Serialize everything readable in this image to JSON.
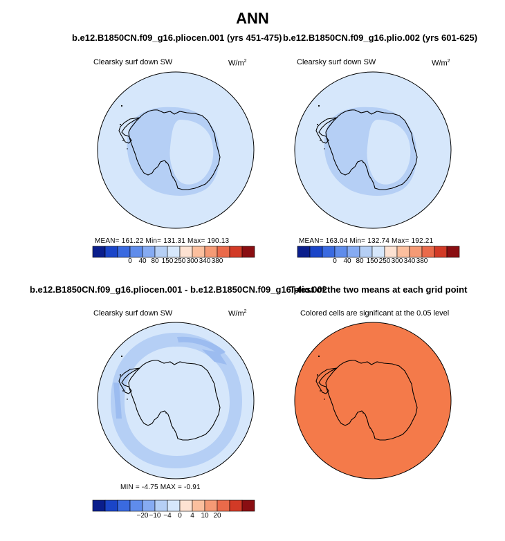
{
  "page": {
    "title": "ANN"
  },
  "panels": [
    {
      "run_title": "b.e12.B1850CN.f09_g16.pliocen.001 (yrs 451-475)",
      "variable": "Clearsky surf down SW",
      "units_base": "W/m",
      "units_exp": "2",
      "stats": "MEAN=  161.22   Min=  131.31   Max=  190.13"
    },
    {
      "run_title": "b.e12.B1850CN.f09_g16.plio.002 (yrs 601-625)",
      "variable": "Clearsky surf down SW",
      "units_base": "W/m",
      "units_exp": "2",
      "stats": "MEAN=  163.04   Min=  132.74   Max=  192.21"
    },
    {
      "run_title": "b.e12.B1850CN.f09_g16.pliocen.001 - b.e12.B1850CN.f09_g16.plio.002",
      "variable": "Clearsky surf down SW",
      "units_base": "W/m",
      "units_exp": "2",
      "stats": "MIN  =   -4.75  MAX  =   -0.91"
    },
    {
      "run_title": "T-test of the two means at each grid point",
      "variable": "Colored cells are significant at the 0.05 level"
    }
  ],
  "colors": {
    "ocean_light": "#d6e7fb",
    "mid_blue": "#b5cff5",
    "ttest_orange": "#f47a4a",
    "coast": "#000000"
  },
  "chart_data": [
    {
      "type": "heatmap",
      "title": "b.e12.B1850CN.f09_g16.pliocen.001 (yrs 451-475)",
      "variable": "Clearsky surf down SW",
      "units": "W/m^2",
      "projection": "south polar stereographic",
      "mean": 161.22,
      "min": 131.31,
      "max": 190.13,
      "colorbar": {
        "labels": [
          "0",
          "40",
          "80",
          "150",
          "250",
          "300",
          "340",
          "380"
        ],
        "colors": [
          "#0a1e8c",
          "#1a45c8",
          "#3a6ae0",
          "#5f8ceb",
          "#86abf2",
          "#b5cff5",
          "#d6e7fb",
          "#fde2d2",
          "#fbbf9e",
          "#f59a75",
          "#ea6a4a",
          "#d23a26",
          "#8a0e12"
        ]
      }
    },
    {
      "type": "heatmap",
      "title": "b.e12.B1850CN.f09_g16.plio.002 (yrs 601-625)",
      "variable": "Clearsky surf down SW",
      "units": "W/m^2",
      "projection": "south polar stereographic",
      "mean": 163.04,
      "min": 132.74,
      "max": 192.21,
      "colorbar": {
        "labels": [
          "0",
          "40",
          "80",
          "150",
          "250",
          "300",
          "340",
          "380"
        ],
        "colors": [
          "#0a1e8c",
          "#1a45c8",
          "#3a6ae0",
          "#5f8ceb",
          "#86abf2",
          "#b5cff5",
          "#d6e7fb",
          "#fde2d2",
          "#fbbf9e",
          "#f59a75",
          "#ea6a4a",
          "#d23a26",
          "#8a0e12"
        ]
      }
    },
    {
      "type": "heatmap",
      "title": "b.e12.B1850CN.f09_g16.pliocen.001 - b.e12.B1850CN.f09_g16.plio.002",
      "variable": "Clearsky surf down SW",
      "units": "W/m^2",
      "projection": "south polar stereographic",
      "min": -4.75,
      "max": -0.91,
      "colorbar": {
        "labels": [
          "-20",
          "-10",
          "-4",
          "0",
          "4",
          "10",
          "20"
        ],
        "colors": [
          "#0a1e8c",
          "#1a45c8",
          "#3a6ae0",
          "#5f8ceb",
          "#86abf2",
          "#b5cff5",
          "#d6e7fb",
          "#fde2d2",
          "#fbbf9e",
          "#f59a75",
          "#ea6a4a",
          "#d23a26",
          "#8a0e12"
        ]
      }
    },
    {
      "type": "heatmap",
      "title": "T-test of the two means at each grid point",
      "variable": "Colored cells are significant at the 0.05 level",
      "projection": "south polar stereographic",
      "fill": "#f47a4a"
    }
  ]
}
